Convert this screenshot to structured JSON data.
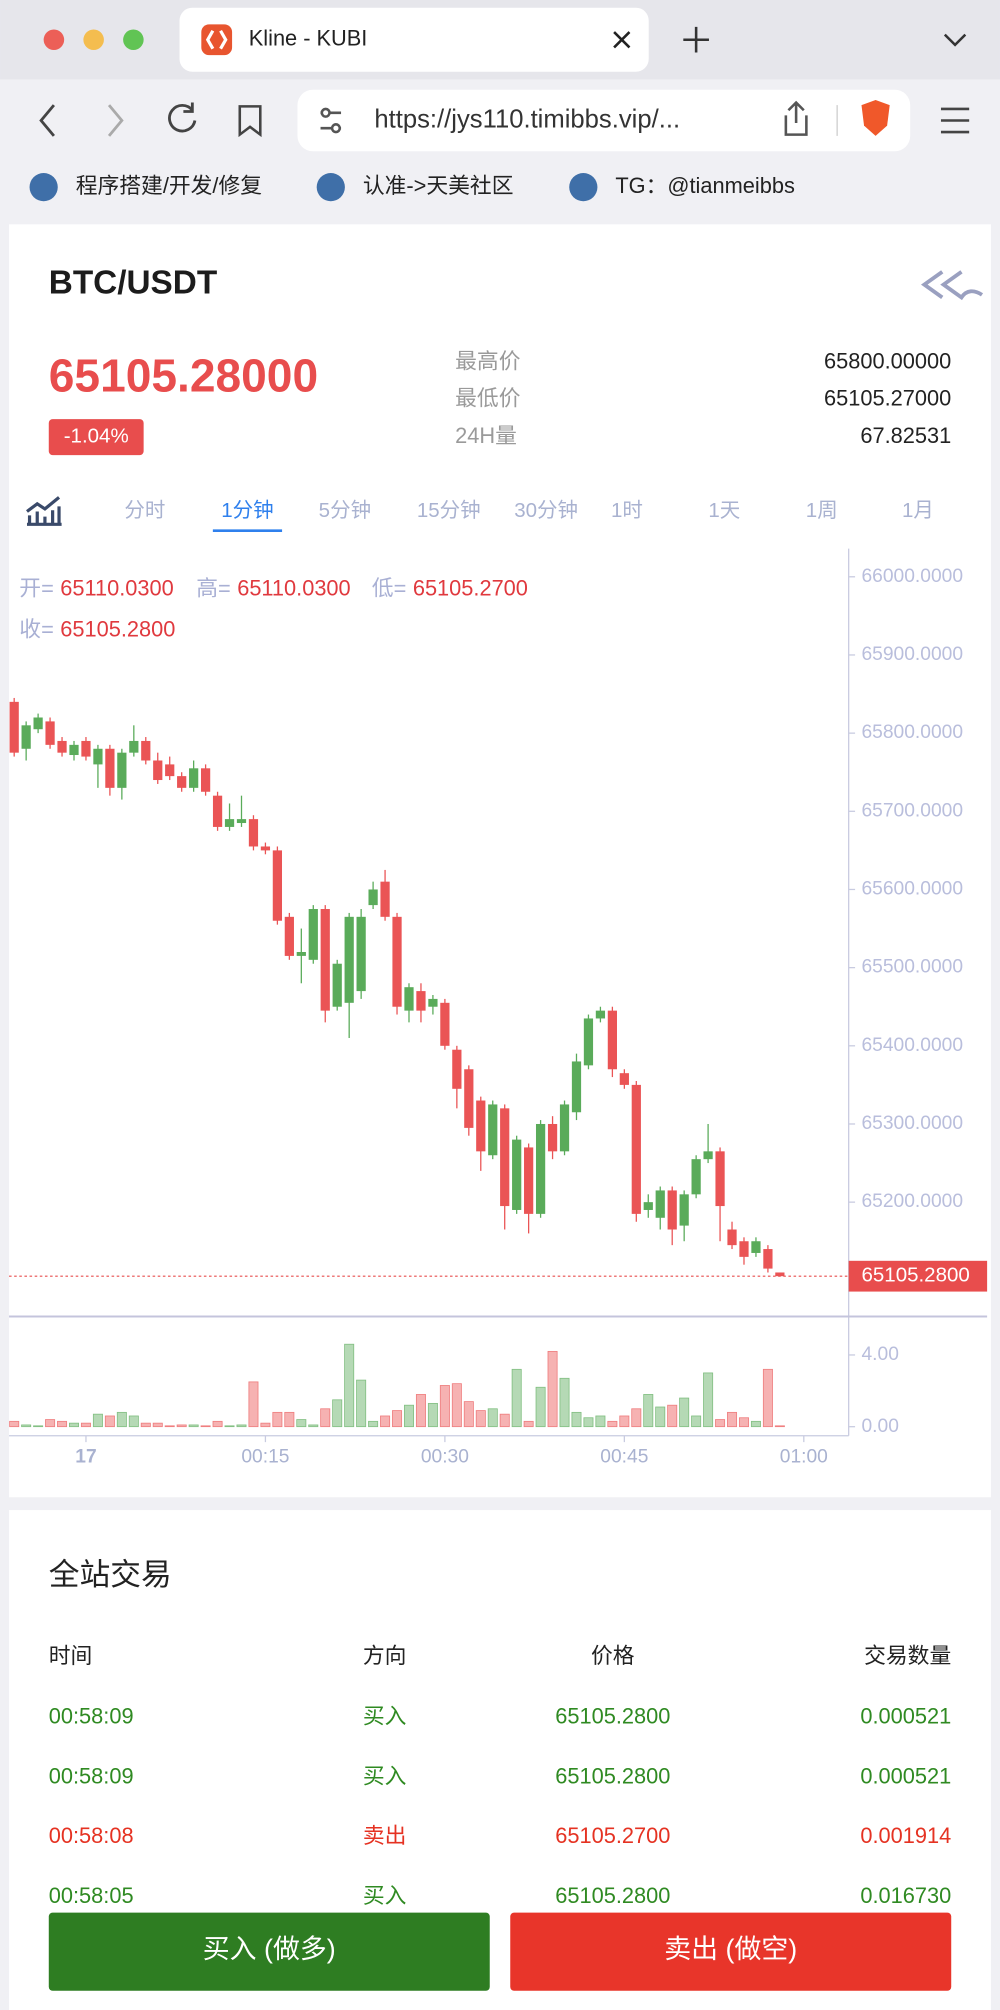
{
  "browser": {
    "tab_title": "Kline - KUBI",
    "url": "https://jys110.timibbs.vip/...",
    "bookmarks": [
      "程序搭建/开发/修复",
      "认准->天美社区",
      "TG：@tianmeibbs"
    ]
  },
  "header": {
    "pair": "BTC/USDT",
    "price": "65105.28000",
    "change": "-1.04%"
  },
  "stats": [
    {
      "label": "最高价",
      "value": "65800.00000"
    },
    {
      "label": "最低价",
      "value": "65105.27000"
    },
    {
      "label": "24H量",
      "value": "67.82531"
    }
  ],
  "tabs": [
    "分时",
    "1分钟",
    "5分钟",
    "15分钟",
    "30分钟",
    "1时",
    "1天",
    "1周",
    "1月"
  ],
  "active_tab": 1,
  "chart_data": {
    "type": "candlestick",
    "legend": [
      {
        "label": "开=",
        "value": "65110.0300"
      },
      {
        "label": "高=",
        "value": "65110.0300"
      },
      {
        "label": "低=",
        "value": "65105.2700"
      },
      {
        "label": "收=",
        "value": "65105.2800"
      }
    ],
    "x": [
      -6,
      -5,
      -4,
      -3,
      -2,
      -1,
      0,
      1,
      2,
      3,
      4,
      5,
      6,
      7,
      8,
      9,
      10,
      11,
      12,
      13,
      14,
      15,
      16,
      17,
      18,
      19,
      20,
      21,
      22,
      23,
      24,
      25,
      26,
      27,
      28,
      29,
      30,
      31,
      32,
      33,
      34,
      35,
      36,
      37,
      38,
      39,
      40,
      41,
      42,
      43,
      44,
      45,
      46,
      47,
      48,
      49,
      50,
      51,
      52,
      53,
      54,
      55,
      56,
      57,
      58
    ],
    "open": [
      65840,
      65780,
      65805,
      65815,
      65790,
      65772,
      65790,
      65760,
      65780,
      65730,
      65775,
      65790,
      65765,
      65760,
      65745,
      65730,
      65755,
      65720,
      65680,
      65685,
      65690,
      65655,
      65650,
      65565,
      65515,
      65510,
      65575,
      65450,
      65455,
      65470,
      65580,
      65610,
      65565,
      65445,
      65470,
      65450,
      65455,
      65395,
      65370,
      65330,
      65260,
      65320,
      65190,
      65270,
      65185,
      65300,
      65265,
      65315,
      65375,
      65435,
      65445,
      65365,
      65350,
      65190,
      65180,
      65215,
      65170,
      65210,
      65255,
      65265,
      65165,
      65150,
      65135,
      65140,
      65110.03
    ],
    "high": [
      65845,
      65815,
      65825,
      65820,
      65795,
      65790,
      65795,
      65785,
      65785,
      65780,
      65810,
      65795,
      65775,
      65770,
      65750,
      65765,
      65760,
      65725,
      65710,
      65720,
      65695,
      65660,
      65655,
      65570,
      65550,
      65580,
      65580,
      65510,
      65570,
      65575,
      65610,
      65625,
      65570,
      65480,
      65480,
      65465,
      65460,
      65400,
      65375,
      65335,
      65330,
      65325,
      65285,
      65275,
      65305,
      65310,
      65330,
      65390,
      65440,
      65450,
      65450,
      65370,
      65355,
      65210,
      65220,
      65220,
      65215,
      65260,
      65300,
      65270,
      65175,
      65155,
      65155,
      65145,
      65110.03
    ],
    "low": [
      65770,
      65765,
      65800,
      65780,
      65770,
      65765,
      65765,
      65730,
      65720,
      65715,
      65770,
      65760,
      65735,
      65740,
      65725,
      65725,
      65720,
      65675,
      65675,
      65680,
      65650,
      65645,
      65555,
      65510,
      65480,
      65505,
      65430,
      65445,
      65410,
      65460,
      65575,
      65560,
      65440,
      65430,
      65430,
      65440,
      65395,
      65320,
      65285,
      65240,
      65255,
      65165,
      65185,
      65160,
      65180,
      65255,
      65260,
      65305,
      65370,
      65430,
      65360,
      65345,
      65175,
      65180,
      65165,
      65145,
      65150,
      65205,
      65250,
      65150,
      65140,
      65120,
      65130,
      65110,
      65105.27
    ],
    "close": [
      65775,
      65810,
      65820,
      65785,
      65775,
      65785,
      65770,
      65780,
      65730,
      65775,
      65790,
      65765,
      65740,
      65745,
      65730,
      65755,
      65725,
      65680,
      65690,
      65690,
      65655,
      65650,
      65560,
      65515,
      65520,
      65575,
      65445,
      65505,
      65565,
      65565,
      65600,
      65565,
      65450,
      65475,
      65445,
      65460,
      65400,
      65345,
      65295,
      65265,
      65325,
      65195,
      65280,
      65185,
      65300,
      65265,
      65325,
      65380,
      65435,
      65445,
      65370,
      65350,
      65185,
      65200,
      65215,
      65165,
      65210,
      65255,
      65265,
      65195,
      65145,
      65130,
      65150,
      65115,
      65105.28
    ],
    "volume": [
      0.3,
      0.1,
      0.05,
      0.4,
      0.3,
      0.2,
      0.2,
      0.7,
      0.6,
      0.8,
      0.6,
      0.2,
      0.2,
      0.05,
      0.1,
      0.1,
      0.05,
      0.3,
      0.05,
      0.1,
      2.5,
      0.2,
      0.8,
      0.8,
      0.4,
      0.1,
      1.0,
      1.5,
      4.6,
      2.6,
      0.3,
      0.6,
      0.9,
      1.2,
      1.8,
      1.3,
      2.3,
      2.4,
      1.4,
      0.9,
      1.0,
      0.7,
      3.2,
      0.3,
      2.2,
      4.2,
      2.7,
      0.8,
      0.5,
      0.6,
      0.3,
      0.6,
      1.0,
      1.8,
      1.1,
      1.2,
      1.6,
      0.6,
      3.0,
      0.4,
      0.8,
      0.5,
      0.3,
      3.2,
      0.05
    ],
    "xlim": [
      -6.43,
      63.75
    ],
    "xticks": [
      {
        "value": 0,
        "label": "17"
      },
      {
        "value": 15,
        "label": "00:15"
      },
      {
        "value": 30,
        "label": "00:30"
      },
      {
        "value": 45,
        "label": "00:45"
      },
      {
        "value": 60,
        "label": "01:00"
      }
    ],
    "ylim": [
      65057,
      66036
    ],
    "yticks": [
      {
        "value": 66000,
        "label": "66000.0000"
      },
      {
        "value": 65900,
        "label": "65900.0000"
      },
      {
        "value": 65800,
        "label": "65800.0000"
      },
      {
        "value": 65700,
        "label": "65700.0000"
      },
      {
        "value": 65600,
        "label": "65600.0000"
      },
      {
        "value": 65500,
        "label": "65500.0000"
      },
      {
        "value": 65400,
        "label": "65400.0000"
      },
      {
        "value": 65300,
        "label": "65300.0000"
      },
      {
        "value": 65200,
        "label": "65200.0000"
      }
    ],
    "volume_ylim": [
      -0.36,
      5.93
    ],
    "volume_ticks": [
      {
        "value": 0,
        "label": "0.00"
      },
      {
        "value": 4,
        "label": "4.00"
      }
    ],
    "last_price": {
      "value": 65105.28,
      "label": "65105.2800"
    },
    "up_color": "#5aab5a",
    "down_color": "#ea5455"
  },
  "trades": {
    "title": "全站交易",
    "columns": [
      "时间",
      "方向",
      "价格",
      "交易数量"
    ],
    "rows": [
      {
        "cells": [
          "00:58:09",
          "买入",
          "65105.2800",
          "0.000521"
        ],
        "color": "#2f8a22"
      },
      {
        "cells": [
          "00:58:09",
          "买入",
          "65105.2800",
          "0.000521"
        ],
        "color": "#2f8a22"
      },
      {
        "cells": [
          "00:58:08",
          "卖出",
          "65105.2700",
          "0.001914"
        ],
        "color": "#e53222"
      },
      {
        "cells": [
          "00:58:05",
          "买入",
          "65105.2800",
          "0.016730"
        ],
        "color": "#2f8a22"
      }
    ]
  },
  "buttons": [
    {
      "label": "买入 (做多)",
      "color": "#2e7d22"
    },
    {
      "label": "卖出 (做空)",
      "color": "#e8352a"
    }
  ]
}
